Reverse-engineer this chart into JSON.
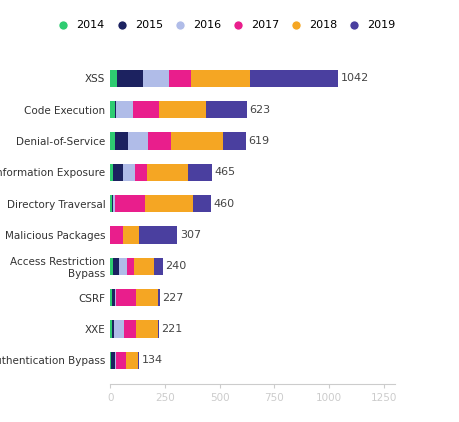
{
  "categories": [
    "XSS",
    "Code Execution",
    "Denial-of-Service",
    "Information Exposure",
    "Directory Traversal",
    "Malicious Packages",
    "Access Restriction\nBypass",
    "CSRF",
    "XXE",
    "Authentication Bypass"
  ],
  "totals": [
    1042,
    623,
    619,
    465,
    460,
    307,
    240,
    227,
    221,
    134
  ],
  "years": [
    "2014",
    "2015",
    "2016",
    "2017",
    "2018",
    "2019"
  ],
  "colors": [
    "#2ecc71",
    "#1c2260",
    "#b0bce8",
    "#e91e8c",
    "#f5a623",
    "#4a3f9f"
  ],
  "segments": [
    [
      30,
      120,
      120,
      100,
      270,
      402
    ],
    [
      20,
      8,
      75,
      120,
      215,
      185
    ],
    [
      20,
      60,
      95,
      105,
      235,
      104
    ],
    [
      15,
      45,
      55,
      55,
      185,
      110
    ],
    [
      10,
      5,
      5,
      140,
      220,
      80
    ],
    [
      0,
      0,
      0,
      60,
      70,
      177
    ],
    [
      15,
      25,
      35,
      35,
      90,
      40
    ],
    [
      10,
      12,
      5,
      90,
      100,
      10
    ],
    [
      10,
      8,
      45,
      55,
      100,
      3
    ],
    [
      5,
      18,
      4,
      47,
      52,
      8
    ]
  ],
  "background_color": "#ffffff",
  "label_fontsize": 8.0,
  "tick_fontsize": 7.5,
  "xlim": [
    0,
    1300
  ],
  "xticks": [
    0,
    250,
    500,
    750,
    1000,
    1250
  ]
}
